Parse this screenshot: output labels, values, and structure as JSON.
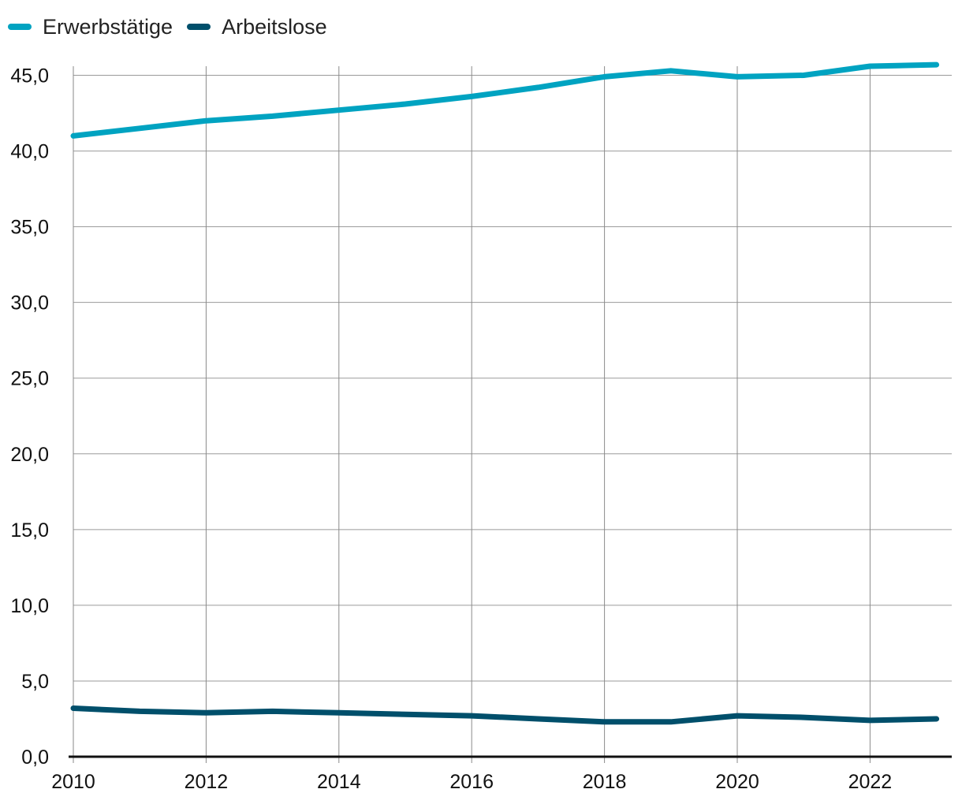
{
  "chart_data": {
    "type": "line",
    "title": "",
    "xlabel": "",
    "ylabel": "",
    "x": [
      2010,
      2011,
      2012,
      2013,
      2014,
      2015,
      2016,
      2017,
      2018,
      2019,
      2020,
      2021,
      2022,
      2023
    ],
    "x_ticks": [
      "2010",
      "2012",
      "2014",
      "2016",
      "2018",
      "2020",
      "2022"
    ],
    "x_tick_values": [
      2010,
      2012,
      2014,
      2016,
      2018,
      2020,
      2022
    ],
    "y_ticks": [
      "0,0",
      "5,0",
      "10,0",
      "15,0",
      "20,0",
      "25,0",
      "30,0",
      "35,0",
      "40,0",
      "45,0"
    ],
    "y_tick_values": [
      0,
      5,
      10,
      15,
      20,
      25,
      30,
      35,
      40,
      45
    ],
    "ylim": [
      0,
      45.6
    ],
    "xlim": [
      2010,
      2023.2
    ],
    "grid": true,
    "legend_position": "top-left",
    "series": [
      {
        "name": "Erwerbstätige",
        "color": "#00a3c1",
        "values": [
          41.0,
          41.5,
          42.0,
          42.3,
          42.7,
          43.1,
          43.6,
          44.2,
          44.9,
          45.3,
          44.9,
          45.0,
          45.6,
          45.7
        ]
      },
      {
        "name": "Arbeitslose",
        "color": "#004f6b",
        "values": [
          3.2,
          3.0,
          2.9,
          3.0,
          2.9,
          2.8,
          2.7,
          2.5,
          2.3,
          2.3,
          2.7,
          2.6,
          2.4,
          2.5
        ]
      }
    ]
  }
}
